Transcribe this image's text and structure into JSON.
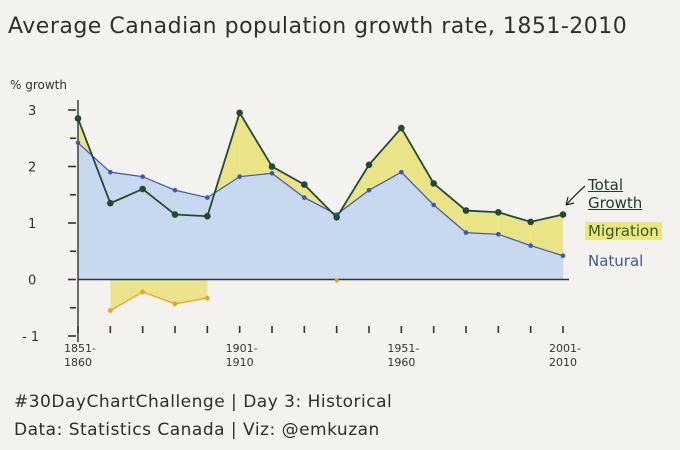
{
  "title": "Average Canadian population growth rate, 1851-2010",
  "y_unit": "% growth",
  "footer": {
    "line1": "#30DayChartChallenge | Day 3: Historical",
    "line2": "Data: Statistics Canada | Viz: @emkuzan"
  },
  "legend": {
    "total": [
      "Total",
      "Growth"
    ],
    "migration": "Migration",
    "natural": "Natural"
  },
  "colors": {
    "total": "#1f4a33",
    "natural_line": "#3b57b5",
    "natural_fill": "#bfd3ee",
    "migration_fill": "#e9e27a",
    "migration_negative": "#e8a32c",
    "axis": "#333333"
  },
  "chart_data": {
    "type": "area",
    "x": [
      "1851-1860",
      "1861-1870",
      "1871-1880",
      "1881-1890",
      "1891-1900",
      "1901-1910",
      "1911-1920",
      "1921-1930",
      "1931-1940",
      "1941-1950",
      "1951-1960",
      "1961-1970",
      "1971-1980",
      "1981-1990",
      "1991-2000",
      "2001-2010"
    ],
    "x_tick_labels": [
      {
        "index": 0,
        "lines": [
          "1851-",
          "1860"
        ]
      },
      {
        "index": 5,
        "lines": [
          "1901-",
          "1910"
        ]
      },
      {
        "index": 10,
        "lines": [
          "1951-",
          "1960"
        ]
      },
      {
        "index": 15,
        "lines": [
          "2001-",
          "2010"
        ]
      }
    ],
    "series": [
      {
        "name": "Total Growth",
        "values": [
          2.85,
          1.35,
          1.6,
          1.15,
          1.12,
          2.95,
          2.0,
          1.68,
          1.1,
          2.03,
          2.68,
          1.7,
          1.22,
          1.19,
          1.02,
          1.15
        ]
      },
      {
        "name": "Natural",
        "values": [
          2.42,
          1.9,
          1.82,
          1.58,
          1.45,
          1.82,
          1.88,
          1.45,
          1.15,
          1.58,
          1.9,
          1.32,
          0.83,
          0.8,
          0.6,
          0.42
        ]
      },
      {
        "name": "Migration",
        "values": [
          0.43,
          -0.55,
          -0.22,
          -0.43,
          -0.33,
          1.13,
          0.12,
          0.23,
          -0.05,
          0.45,
          0.78,
          0.38,
          0.39,
          0.39,
          0.42,
          0.73
        ]
      }
    ],
    "yticks": [
      -1,
      0,
      1,
      2,
      3
    ],
    "ylim": [
      -1,
      3.3
    ],
    "grid": false,
    "legend_position": "right"
  }
}
